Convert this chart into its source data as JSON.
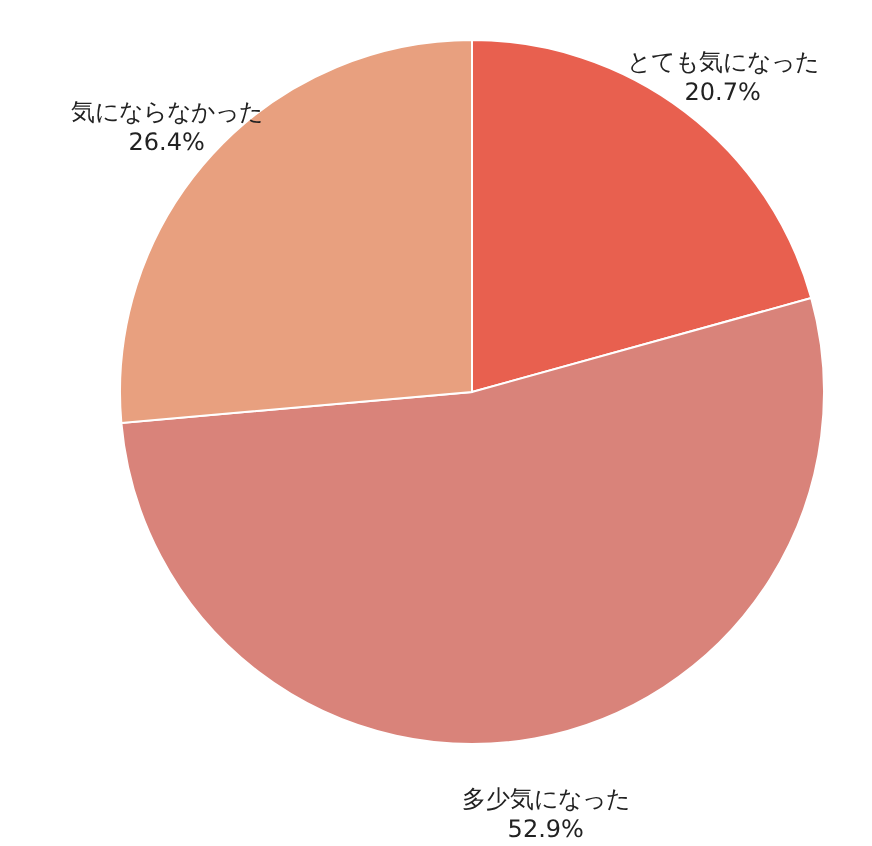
{
  "chart_data": {
    "type": "pie",
    "categories": [
      "とても気になった",
      "多少気になった",
      "気にならなかった"
    ],
    "values": [
      20.7,
      52.9,
      26.4
    ],
    "value_labels": [
      "20.7%",
      "52.9%",
      "26.4%"
    ],
    "colors": [
      "#e8604f",
      "#d9837a",
      "#e8a07f"
    ]
  }
}
